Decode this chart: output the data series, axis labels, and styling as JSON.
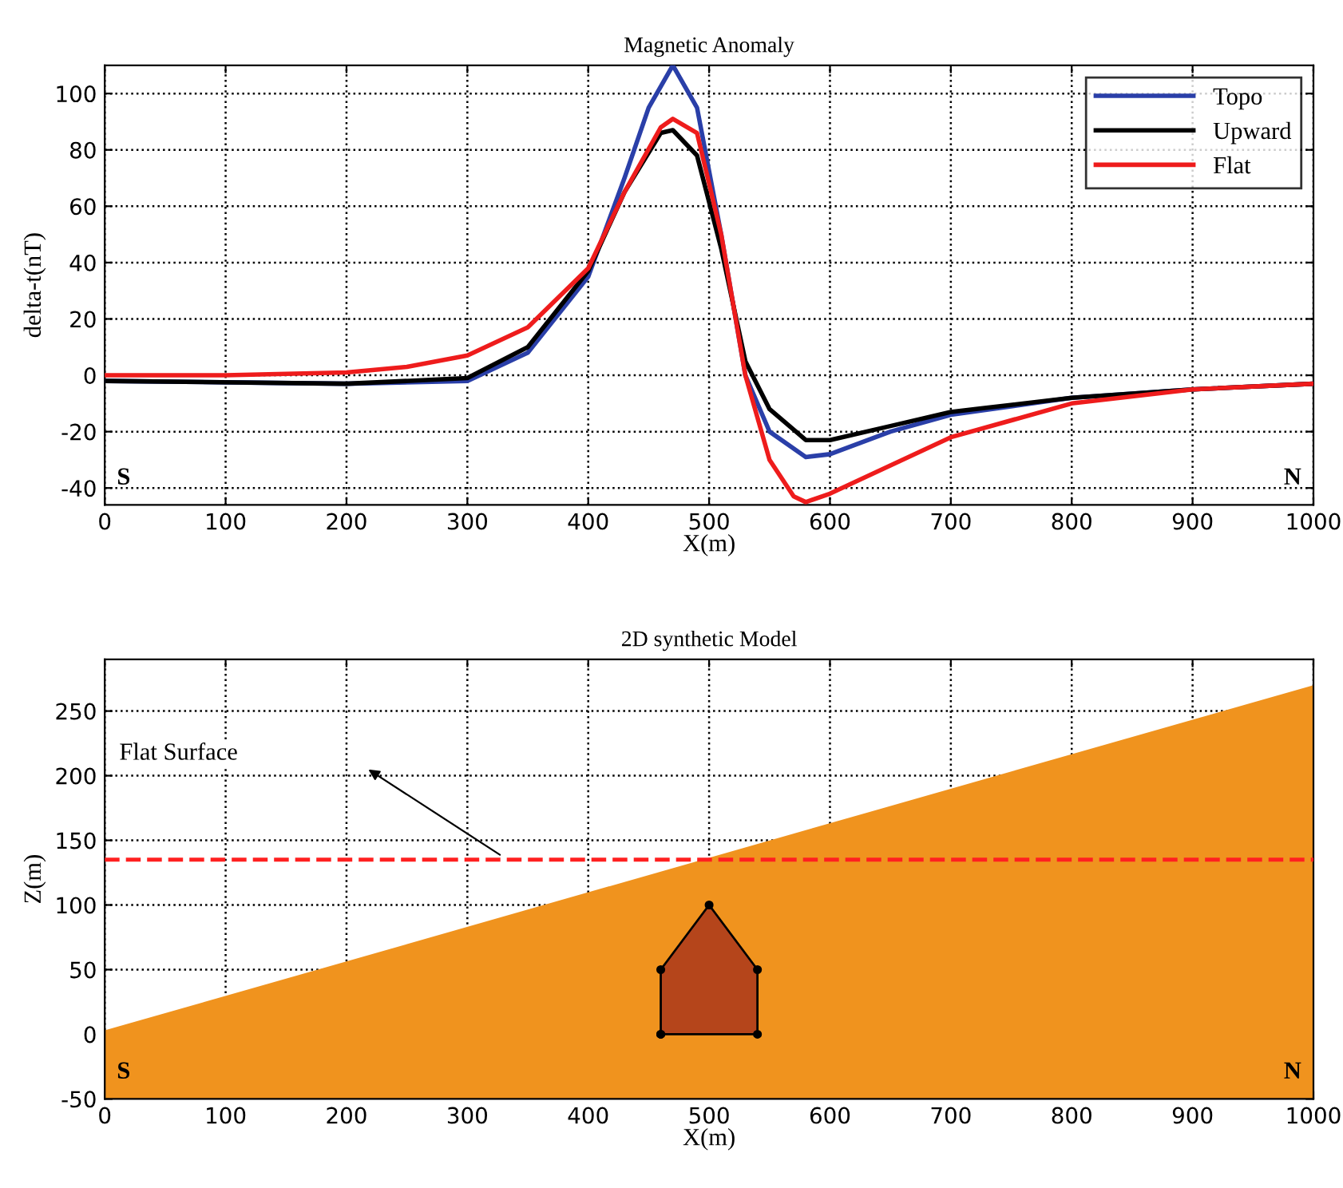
{
  "chart_data": [
    {
      "type": "line",
      "title": "Magnetic Anomaly",
      "xlabel": "X(m)",
      "ylabel": "delta-t(nT)",
      "xlim": [
        0,
        1000
      ],
      "xticks": [
        0,
        100,
        200,
        300,
        400,
        500,
        600,
        700,
        800,
        900,
        1000
      ],
      "ylim": [
        -46,
        110
      ],
      "yticks": [
        -40,
        -20,
        0,
        20,
        40,
        60,
        80,
        100
      ],
      "grid": true,
      "legend": "top right",
      "line_style": "solid",
      "annotations": [
        "S",
        "N"
      ],
      "series": [
        {
          "name": "Topo",
          "color": "#2a3fa8",
          "x": [
            0,
            100,
            200,
            300,
            350,
            400,
            430,
            450,
            470,
            490,
            510,
            530,
            550,
            580,
            600,
            650,
            700,
            800,
            900,
            1000
          ],
          "values": [
            -2,
            -2.5,
            -3,
            -2,
            8,
            35,
            70,
            95,
            110,
            95,
            50,
            0,
            -20,
            -29,
            -28,
            -20,
            -14,
            -8,
            -5,
            -3
          ]
        },
        {
          "name": "Upward",
          "color": "#000000",
          "x": [
            0,
            200,
            300,
            350,
            400,
            430,
            460,
            470,
            490,
            510,
            530,
            550,
            580,
            600,
            650,
            700,
            800,
            900,
            1000
          ],
          "values": [
            -2,
            -3,
            -1,
            10,
            37,
            65,
            86,
            87,
            78,
            45,
            5,
            -12,
            -23,
            -23,
            -18,
            -13,
            -8,
            -5,
            -3
          ]
        },
        {
          "name": "Flat",
          "color": "#ee1c1c",
          "x": [
            0,
            100,
            200,
            250,
            300,
            350,
            400,
            430,
            460,
            470,
            490,
            510,
            530,
            550,
            570,
            580,
            600,
            650,
            700,
            800,
            900,
            1000
          ],
          "values": [
            0,
            0,
            1,
            3,
            7,
            17,
            38,
            65,
            88,
            91,
            86,
            50,
            0,
            -30,
            -43,
            -45,
            -42,
            -32,
            -22,
            -10,
            -5,
            -3
          ]
        }
      ]
    },
    {
      "type": "area",
      "title": "2D synthetic Model",
      "xlabel": "X(m)",
      "ylabel": "Z(m)",
      "xlim": [
        0,
        1000
      ],
      "xticks": [
        0,
        100,
        200,
        300,
        400,
        500,
        600,
        700,
        800,
        900,
        1000
      ],
      "ylim": [
        -50,
        290
      ],
      "yticks": [
        -50,
        0,
        50,
        100,
        150,
        200,
        250
      ],
      "grid": true,
      "annotations": [
        "S",
        "N",
        "Flat Surface"
      ],
      "ref_lines": [
        {
          "axis": "y",
          "value": 135,
          "color": "#ff2020",
          "line_style": "dashed"
        }
      ],
      "series": [
        {
          "color": "#f0931e",
          "x": [
            0,
            0,
            1000,
            1000
          ],
          "values": [
            -50,
            3,
            270,
            -50
          ]
        },
        {
          "color": "#b5451b",
          "x": [
            460,
            460,
            500,
            540,
            540
          ],
          "values": [
            0,
            50,
            100,
            50,
            0
          ],
          "marker": "circle"
        }
      ]
    }
  ]
}
